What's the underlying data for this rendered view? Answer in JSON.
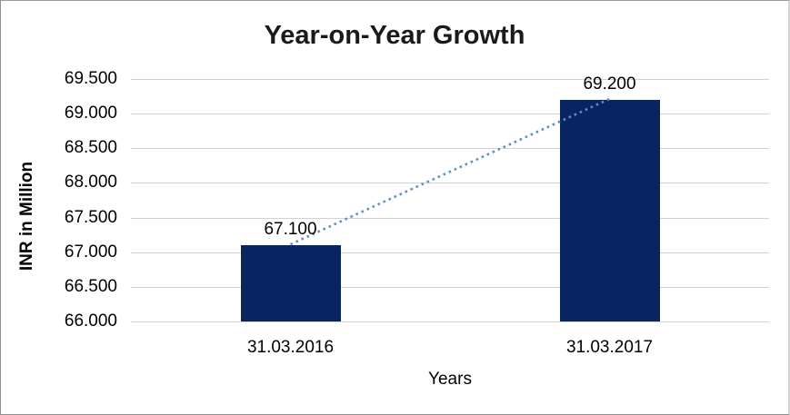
{
  "chart_data": {
    "type": "bar",
    "title": "Year-on-Year Growth",
    "categories": [
      "31.03.2016",
      "31.03.2017"
    ],
    "values": [
      67.1,
      69.2
    ],
    "data_labels": [
      "67.100",
      "69.200"
    ],
    "xlabel": "Years",
    "ylabel": "INR in Million",
    "ylim": [
      66.0,
      69.5
    ],
    "ytick_step": 0.5,
    "yticks": [
      "66.000",
      "66.500",
      "67.000",
      "67.500",
      "68.000",
      "68.500",
      "69.000",
      "69.500"
    ],
    "grid": true,
    "legend": "none",
    "bar_color": "#0a2361",
    "gridline_color": "#d2d2d2",
    "trendline": {
      "type": "linear",
      "style": "dotted",
      "color": "#5b8fd0"
    }
  }
}
